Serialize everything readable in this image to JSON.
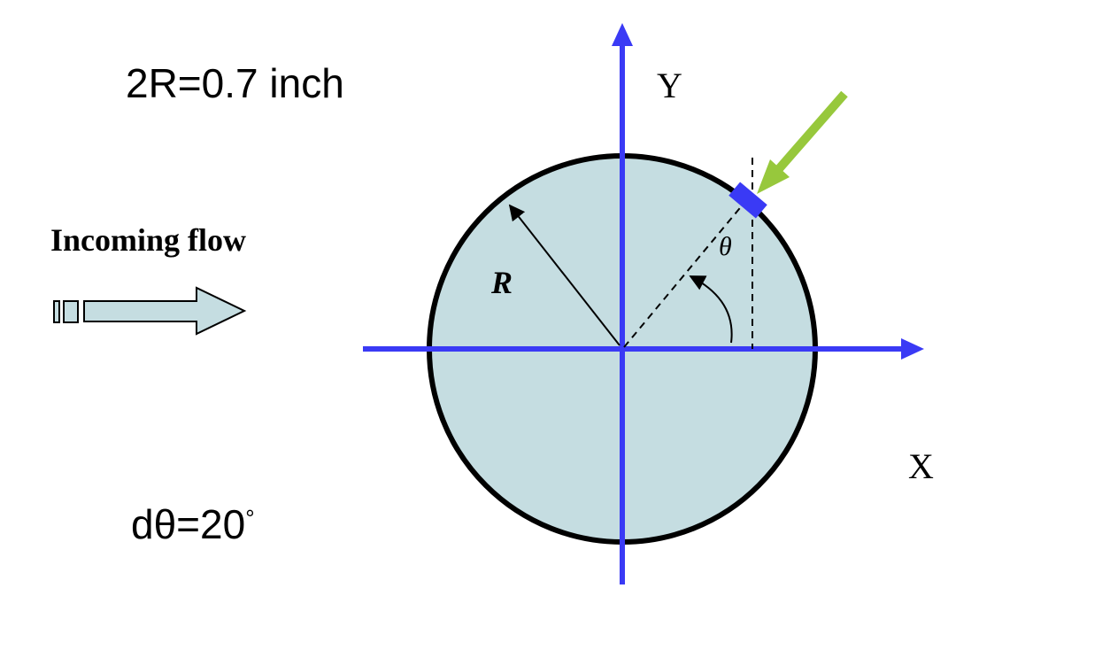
{
  "annotations": {
    "diameter": "2R=0.7 inch",
    "dtheta": "dθ=20",
    "dtheta_degree": "°",
    "incoming_flow": "Incoming flow"
  },
  "axes": {
    "x_label": "X",
    "y_label": "Y"
  },
  "symbols": {
    "radius": "R",
    "angle": "θ"
  },
  "colors": {
    "axis": "#3a3af5",
    "cylinder_fill": "#c5dde1",
    "cylinder_stroke": "#000000",
    "sensor": "#3a3af5",
    "probe_arrow": "#97c83c",
    "flow_arrow_fill": "#c5dde1"
  }
}
